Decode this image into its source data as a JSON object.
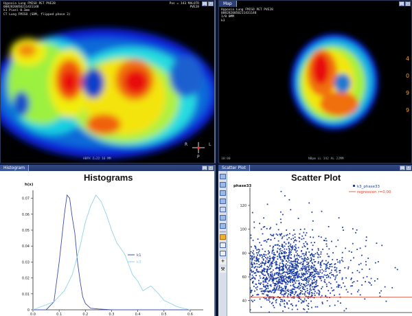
{
  "left_view": {
    "tab": "",
    "info_left": "Hypoxia Lung FMISO PET PVE28\n0082820050211431148\nk1 Pixel 0.3mm\nCT Lung FMISO (SDM, flipped phase 3)",
    "info_right": "Pos = 143 MALOTR\nPVE28",
    "footer": "HBPX   Z=22   16 MM",
    "orient_r": "R",
    "orient_l": "L",
    "orient_p": "P"
  },
  "right_view": {
    "tab": "Map",
    "info_left": "Hypoxia Lung FMISO PET PVE28\n0082820050211431148\n1/0 0MM\nk3",
    "footer_left": "10:00",
    "footer": "NBpm  LL  142 AL 22MM",
    "side_values": [
      "4",
      "0",
      "9",
      "9"
    ]
  },
  "histogram": {
    "tab": "Histogram",
    "title": "Histograms",
    "ylabel": "h(x)",
    "legend": [
      {
        "name": "k1",
        "color": "#3b4fa8"
      },
      {
        "name": "k3",
        "color": "#8fd3e8"
      }
    ]
  },
  "scatter": {
    "tab": "Scatter Plot",
    "title": "Scatter Plot",
    "ylabel": "phase33",
    "legend": [
      {
        "name": "k3_phase33",
        "color": "#1f3fa6"
      },
      {
        "name": "regression r=0.00",
        "color": "#e0402a"
      }
    ]
  },
  "chart_data": [
    {
      "type": "line",
      "title": "Histograms",
      "ylabel": "h(x)",
      "xlim": [
        0.0,
        0.65
      ],
      "ylim": [
        0,
        0.075
      ],
      "x_ticks": [
        "0.0",
        "0.1",
        "0.2",
        "0.3",
        "0.4",
        "0.5",
        "0.6"
      ],
      "y_ticks": [
        "0",
        "0.01",
        "0.02",
        "0.03",
        "0.04",
        "0.05",
        "0.06",
        "0.07"
      ],
      "series": [
        {
          "name": "k1",
          "color": "#3b4fa8",
          "x": [
            0.0,
            0.05,
            0.08,
            0.1,
            0.12,
            0.13,
            0.14,
            0.15,
            0.16,
            0.17,
            0.18,
            0.19,
            0.2,
            0.22,
            0.25,
            0.3,
            0.35,
            0.4,
            0.5,
            0.6
          ],
          "y": [
            0,
            0.0,
            0.005,
            0.03,
            0.06,
            0.072,
            0.07,
            0.058,
            0.048,
            0.03,
            0.018,
            0.008,
            0.004,
            0.001,
            0.0005,
            0,
            0,
            0,
            0,
            0
          ]
        },
        {
          "name": "k3",
          "color": "#8fd3e8",
          "x": [
            0.0,
            0.08,
            0.12,
            0.15,
            0.18,
            0.2,
            0.22,
            0.24,
            0.26,
            0.28,
            0.3,
            0.32,
            0.35,
            0.38,
            0.4,
            0.42,
            0.45,
            0.48,
            0.5,
            0.55,
            0.6
          ],
          "y": [
            0,
            0.005,
            0.012,
            0.022,
            0.04,
            0.055,
            0.065,
            0.072,
            0.068,
            0.06,
            0.05,
            0.042,
            0.035,
            0.022,
            0.018,
            0.012,
            0.015,
            0.01,
            0.006,
            0.002,
            0
          ]
        }
      ]
    },
    {
      "type": "scatter",
      "title": "Scatter Plot",
      "ylabel": "phase33",
      "xlim": [
        0.0,
        0.65
      ],
      "ylim": [
        30,
        135
      ],
      "y_ticks": [
        "40",
        "60",
        "80",
        "100",
        "120"
      ],
      "series": [
        {
          "name": "k3_phase33",
          "color": "#1f3fa6",
          "x_center": 0.15,
          "y_center": 62,
          "points": 1500
        },
        {
          "name": "regression r=0.00",
          "color": "#e0402a",
          "slope": 0,
          "intercept": 43
        }
      ]
    }
  ]
}
